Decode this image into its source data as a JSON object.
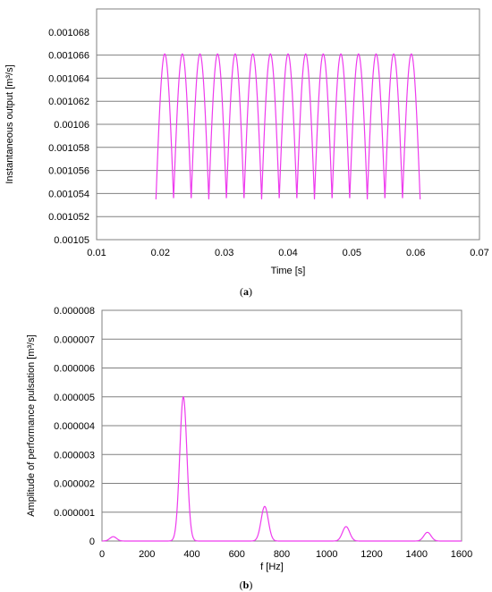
{
  "chart_data": [
    {
      "id": "a",
      "type": "line",
      "caption_open": "(",
      "caption_letter": "a",
      "caption_close": ")",
      "xlabel": "Time  [s]",
      "ylabel": "Instantaneous output [m³/s]",
      "xlim": [
        0.01,
        0.07
      ],
      "ylim": [
        0.00105,
        0.00107
      ],
      "xticks": [
        "0.01",
        "0.02",
        "0.03",
        "0.04",
        "0.05",
        "0.06",
        "0.07"
      ],
      "yticks": [
        "0.00105",
        "0.001052",
        "0.001054",
        "0.001056",
        "0.001058",
        "0.00106",
        "0.001062",
        "0.001064",
        "0.001066",
        "0.001068"
      ],
      "grid": "horizontal",
      "line_color": "#ee3bee",
      "series": [
        {
          "t_start": 0.0193,
          "t_end": 0.0607,
          "period": 0.00276,
          "min": 0.0010535,
          "max": 0.0010661,
          "count": 15
        }
      ]
    },
    {
      "id": "b",
      "type": "line",
      "caption_open": "(",
      "caption_letter": "b",
      "caption_close": ")",
      "xlabel": "f [Hz]",
      "ylabel": "Amplitude of performance pulsation [m³/s]",
      "xlim": [
        0,
        1600
      ],
      "ylim": [
        0,
        8e-06
      ],
      "xticks": [
        "0",
        "200",
        "400",
        "600",
        "800",
        "1000",
        "1200",
        "1400",
        "1600"
      ],
      "yticks": [
        "0",
        "0.000001",
        "0.000002",
        "0.000003",
        "0.000004",
        "0.000005",
        "0.000006",
        "0.000007",
        "0.000008"
      ],
      "grid": "horizontal",
      "line_color": "#ee3bee",
      "series": [
        {
          "peaks": [
            {
              "f": 50,
              "amp": 1.5e-07,
              "width": 15
            },
            {
              "f": 362,
              "amp": 5e-06,
              "width": 16
            },
            {
              "f": 724,
              "amp": 1.2e-06,
              "width": 16
            },
            {
              "f": 1086,
              "amp": 5e-07,
              "width": 16
            },
            {
              "f": 1448,
              "amp": 3e-07,
              "width": 16
            }
          ]
        }
      ]
    }
  ]
}
